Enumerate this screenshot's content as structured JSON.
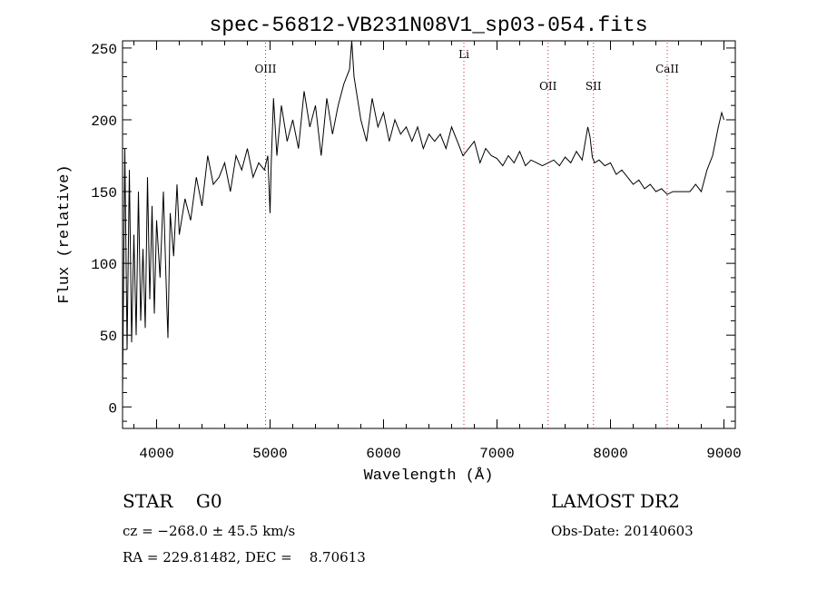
{
  "chart_data": {
    "type": "line",
    "title": "spec-56812-VB231N08V1_sp03-054.fits",
    "xlabel": "Wavelength (Å)",
    "ylabel": "Flux (relative)",
    "xlim": [
      3700,
      9100
    ],
    "ylim": [
      -15,
      255
    ],
    "xticks": [
      4000,
      5000,
      6000,
      7000,
      8000,
      9000
    ],
    "yticks": [
      0,
      50,
      100,
      150,
      200,
      250
    ],
    "grid": false,
    "line_color": "#000000",
    "marker_line_color": "#cc2222",
    "series": [
      {
        "x": [
          3700,
          3720,
          3740,
          3760,
          3780,
          3800,
          3820,
          3840,
          3860,
          3880,
          3900,
          3920,
          3940,
          3960,
          3980,
          4000,
          4030,
          4060,
          4090,
          4100,
          4120,
          4150,
          4180,
          4200,
          4250,
          4300,
          4350,
          4400,
          4450,
          4500,
          4550,
          4600,
          4650,
          4700,
          4750,
          4800,
          4850,
          4900,
          4950,
          4980,
          5000,
          5010,
          5030,
          5060,
          5100,
          5150,
          5200,
          5250,
          5300,
          5350,
          5400,
          5450,
          5500,
          5550,
          5600,
          5650,
          5700,
          5720,
          5740,
          5760,
          5800,
          5850,
          5900,
          5950,
          6000,
          6050,
          6100,
          6150,
          6200,
          6250,
          6300,
          6350,
          6400,
          6450,
          6500,
          6550,
          6600,
          6650,
          6700,
          6750,
          6800,
          6850,
          6900,
          6950,
          7000,
          7050,
          7100,
          7150,
          7200,
          7250,
          7300,
          7350,
          7400,
          7450,
          7500,
          7550,
          7600,
          7650,
          7700,
          7750,
          7800,
          7820,
          7840,
          7860,
          7900,
          7950,
          8000,
          8050,
          8100,
          8150,
          8200,
          8250,
          8300,
          8350,
          8400,
          8450,
          8500,
          8550,
          8600,
          8650,
          8700,
          8750,
          8800,
          8850,
          8900,
          8950,
          8980,
          9000
        ],
        "y": [
          10,
          180,
          40,
          165,
          45,
          120,
          50,
          150,
          60,
          110,
          55,
          160,
          75,
          140,
          65,
          130,
          90,
          150,
          70,
          48,
          135,
          105,
          155,
          120,
          145,
          130,
          160,
          140,
          175,
          155,
          160,
          170,
          150,
          175,
          165,
          180,
          160,
          170,
          165,
          175,
          135,
          170,
          215,
          175,
          210,
          185,
          200,
          180,
          220,
          195,
          210,
          175,
          215,
          190,
          210,
          225,
          235,
          255,
          230,
          220,
          200,
          185,
          215,
          195,
          205,
          185,
          200,
          190,
          195,
          185,
          195,
          180,
          190,
          185,
          190,
          180,
          195,
          185,
          175,
          180,
          185,
          170,
          180,
          175,
          173,
          168,
          175,
          170,
          178,
          168,
          172,
          170,
          168,
          170,
          172,
          168,
          174,
          170,
          178,
          172,
          195,
          188,
          174,
          170,
          172,
          168,
          170,
          162,
          165,
          160,
          155,
          158,
          152,
          155,
          150,
          152,
          148,
          150,
          150,
          150,
          150,
          155,
          150,
          165,
          175,
          195,
          205,
          200
        ]
      }
    ],
    "annotations": [
      {
        "label": "OIII",
        "x": 4960,
        "label_y": 233
      },
      {
        "label": "Li",
        "x": 6708,
        "label_y": 243
      },
      {
        "label": "OII",
        "x": 7450,
        "label_y": 221
      },
      {
        "label": "SII",
        "x": 7850,
        "label_y": 221
      },
      {
        "label": "CaII",
        "x": 8500,
        "label_y": 233
      }
    ]
  },
  "info": {
    "object_class": "STAR    G0",
    "cz": "cz = −268.0 ± 45.5 km/s",
    "radec": "RA = 229.81482, DEC =    8.70613",
    "survey": "LAMOST DR2",
    "obs_date": "Obs-Date: 20140603"
  }
}
